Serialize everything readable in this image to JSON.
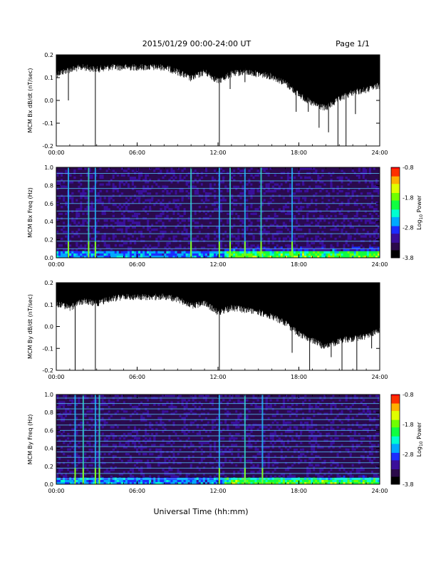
{
  "header": {
    "title": "2015/01/29  00:00-24:00 UT",
    "page_label": "Page 1/1"
  },
  "footer": {
    "xlabel": "Universal Time (hh:mm)"
  },
  "colors": {
    "trace": "#000000",
    "colormap": [
      "#000000",
      "#2b0a4a",
      "#3a0f9a",
      "#1c2cff",
      "#00aaff",
      "#00ffd0",
      "#10ff40",
      "#70ff00",
      "#e0ff00",
      "#ffb000",
      "#ff3000",
      "#ff0000"
    ],
    "spectral_line": "#56d0ff"
  },
  "chart_data": [
    {
      "type": "line",
      "id": "bx-dbdt",
      "title": "",
      "xlabel": "",
      "ylabel": "MCM Bx dB/dt (nT/sec)",
      "xlim": [
        0,
        24
      ],
      "ylim": [
        -0.2,
        0.2
      ],
      "x_tick_labels": [
        "00:00",
        "06:00",
        "12:00",
        "18:00",
        "24:00"
      ],
      "y_tick_labels": [
        "0.2",
        "0.1",
        "0.0",
        "-0.1",
        "-0.2"
      ],
      "series": [
        {
          "x": [
            0,
            1,
            2,
            3,
            4,
            5,
            6,
            7,
            8,
            9,
            10,
            11,
            12,
            13,
            14,
            15,
            16,
            17,
            18,
            19,
            20,
            21,
            22,
            23,
            24
          ],
          "upper": [
            0.2,
            0.2,
            0.2,
            0.2,
            0.2,
            0.2,
            0.2,
            0.2,
            0.2,
            0.2,
            0.2,
            0.2,
            0.2,
            0.2,
            0.2,
            0.2,
            0.2,
            0.2,
            0.2,
            0.2,
            0.2,
            0.2,
            0.2,
            0.2,
            0.2
          ],
          "lower": [
            0.13,
            0.15,
            0.16,
            0.15,
            0.16,
            0.16,
            0.16,
            0.16,
            0.16,
            0.14,
            0.11,
            0.14,
            0.1,
            0.13,
            0.14,
            0.13,
            0.12,
            0.09,
            0.04,
            0.0,
            -0.02,
            0.02,
            0.05,
            0.06,
            0.08
          ]
        }
      ],
      "spikes": [
        {
          "x": 0.9,
          "y": 0.0
        },
        {
          "x": 2.9,
          "y": -0.2
        },
        {
          "x": 12.1,
          "y": -0.2
        },
        {
          "x": 12.9,
          "y": 0.05
        },
        {
          "x": 14.0,
          "y": 0.08
        },
        {
          "x": 17.8,
          "y": -0.05
        },
        {
          "x": 18.7,
          "y": -0.05
        },
        {
          "x": 19.5,
          "y": -0.12
        },
        {
          "x": 20.2,
          "y": -0.14
        },
        {
          "x": 20.9,
          "y": -0.2
        },
        {
          "x": 21.5,
          "y": -0.2
        },
        {
          "x": 22.2,
          "y": -0.06
        }
      ]
    },
    {
      "type": "heatmap",
      "id": "bx-spec",
      "title": "",
      "xlabel": "",
      "ylabel": "MCM Bx Freq (Hz)",
      "xlim": [
        0,
        24
      ],
      "ylim": [
        0,
        1.0
      ],
      "x_tick_labels": [
        "00:00",
        "06:00",
        "12:00",
        "18:00",
        "24:00"
      ],
      "y_tick_labels": [
        "1.0",
        "0.8",
        "0.6",
        "0.4",
        "0.2",
        "0.0"
      ],
      "colorbar": {
        "label": "Log10 Power",
        "label_base": "Log",
        "label_sub": "10",
        "label_rest": " Power",
        "range": [
          -3.8,
          -0.8
        ],
        "tick_labels": [
          "-0.8",
          "-1.8",
          "-2.8",
          "-3.8"
        ]
      },
      "harmonic_lines_hz": [
        0.1,
        0.183,
        0.267,
        0.35,
        0.433,
        0.517,
        0.6,
        0.683,
        0.767,
        0.85,
        0.933
      ],
      "vertical_bursts_hr": [
        0.9,
        2.4,
        2.9,
        10.0,
        12.1,
        12.9,
        14.0,
        15.2,
        17.5
      ],
      "low_freq_enhancement": [
        {
          "x_start": 12.5,
          "x_end": 24,
          "max_hz": 0.15
        }
      ]
    },
    {
      "type": "line",
      "id": "by-dbdt",
      "title": "",
      "xlabel": "",
      "ylabel": "MCM By dB/dt (nT/sec)",
      "xlim": [
        0,
        24
      ],
      "ylim": [
        -0.2,
        0.2
      ],
      "x_tick_labels": [
        "00:00",
        "06:00",
        "12:00",
        "18:00",
        "24:00"
      ],
      "y_tick_labels": [
        "0.2",
        "0.1",
        "0.0",
        "-0.1",
        "-0.2"
      ],
      "series": [
        {
          "x": [
            0,
            1,
            2,
            3,
            4,
            5,
            6,
            7,
            8,
            9,
            10,
            11,
            12,
            13,
            14,
            15,
            16,
            17,
            18,
            19,
            20,
            21,
            22,
            23,
            24
          ],
          "upper": [
            0.2,
            0.2,
            0.2,
            0.2,
            0.2,
            0.2,
            0.2,
            0.2,
            0.2,
            0.2,
            0.2,
            0.2,
            0.2,
            0.2,
            0.2,
            0.2,
            0.2,
            0.2,
            0.2,
            0.2,
            0.2,
            0.2,
            0.2,
            0.2,
            0.2
          ],
          "lower": [
            0.12,
            0.1,
            0.13,
            0.12,
            0.14,
            0.15,
            0.15,
            0.15,
            0.15,
            0.14,
            0.11,
            0.12,
            0.08,
            0.1,
            0.09,
            0.08,
            0.06,
            0.03,
            -0.02,
            -0.05,
            -0.08,
            -0.05,
            -0.04,
            -0.03,
            0.0
          ]
        }
      ],
      "spikes": [
        {
          "x": 1.4,
          "y": -0.2
        },
        {
          "x": 2.9,
          "y": -0.2
        },
        {
          "x": 12.1,
          "y": -0.2
        },
        {
          "x": 17.5,
          "y": -0.12
        },
        {
          "x": 18.8,
          "y": -0.2
        },
        {
          "x": 20.4,
          "y": -0.14
        },
        {
          "x": 21.2,
          "y": -0.2
        },
        {
          "x": 22.3,
          "y": -0.2
        },
        {
          "x": 23.4,
          "y": -0.1
        }
      ]
    },
    {
      "type": "heatmap",
      "id": "by-spec",
      "title": "",
      "xlabel": "",
      "ylabel": "MCM By Freq (Hz)",
      "xlim": [
        0,
        24
      ],
      "ylim": [
        0,
        1.0
      ],
      "x_tick_labels": [
        "00:00",
        "06:00",
        "12:00",
        "18:00",
        "24:00"
      ],
      "y_tick_labels": [
        "1.0",
        "0.8",
        "0.6",
        "0.4",
        "0.2",
        "0.0"
      ],
      "colorbar": {
        "label": "Log10 Power",
        "label_base": "Log",
        "label_sub": "10",
        "label_rest": " Power",
        "range": [
          -3.8,
          -0.8
        ],
        "tick_labels": [
          "-0.8",
          "-1.8",
          "-2.8",
          "-3.8"
        ]
      },
      "harmonic_lines_hz": [
        0.06,
        0.12,
        0.18,
        0.24,
        0.3,
        0.36,
        0.42,
        0.48,
        0.54,
        0.6,
        0.66,
        0.72,
        0.78,
        0.84,
        0.9,
        0.96
      ],
      "vertical_bursts_hr": [
        1.4,
        2.0,
        2.9,
        3.2,
        12.1,
        14.0,
        15.3
      ],
      "low_freq_enhancement": [
        {
          "x_start": 12.5,
          "x_end": 24,
          "max_hz": 0.1
        }
      ]
    }
  ]
}
